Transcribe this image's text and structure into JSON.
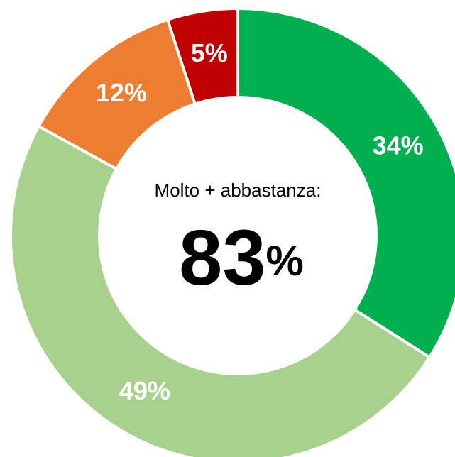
{
  "chart_data": {
    "type": "donut",
    "categories": [
      null,
      null,
      null,
      null
    ],
    "values": [
      34,
      49,
      12,
      5
    ],
    "value_labels": [
      "34%",
      "49%",
      "12%",
      "5%"
    ],
    "colors": [
      "#00b050",
      "#a9d18e",
      "#ed7d31",
      "#c00000"
    ],
    "center_label": "Molto + abbastanza:",
    "center_value": 83,
    "center_unit": "%"
  }
}
